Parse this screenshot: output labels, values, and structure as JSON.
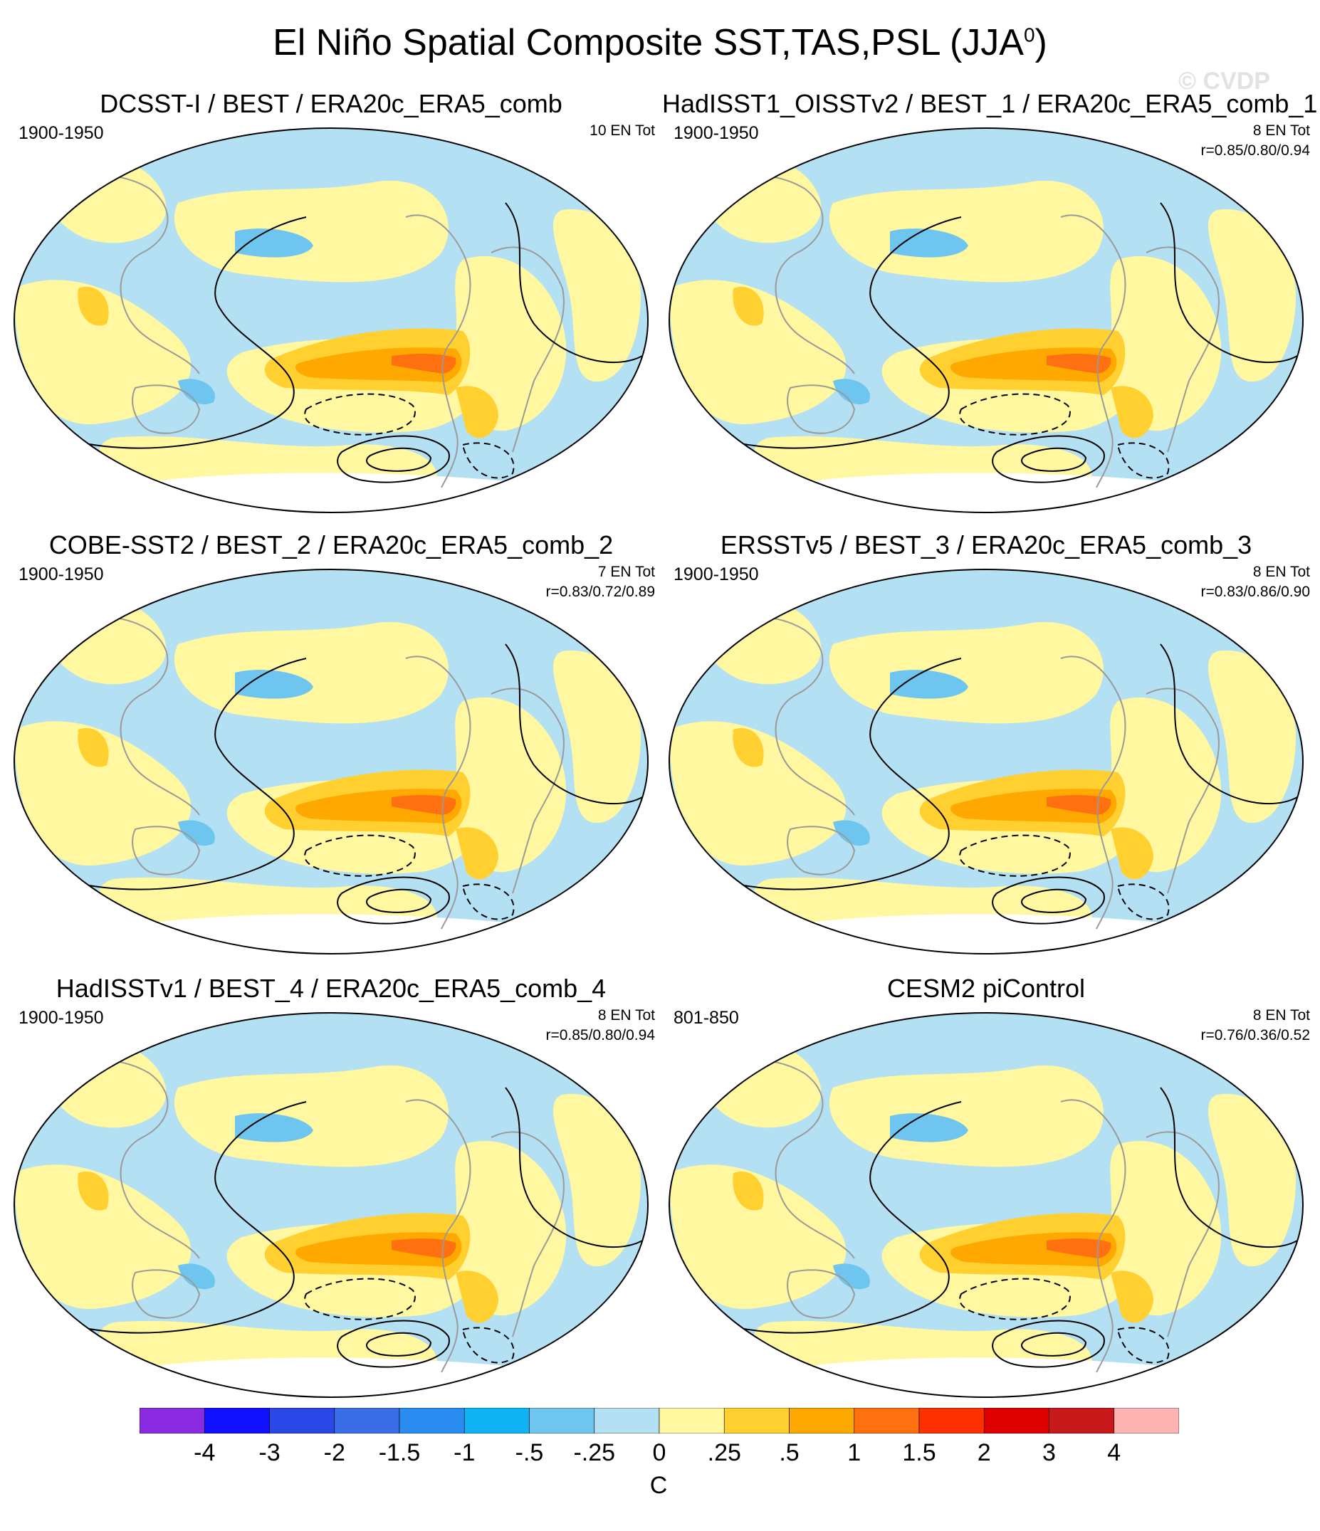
{
  "figure": {
    "title": "El Niño Spatial Composite SST,TAS,PSL (JJA",
    "title_superscript": "0",
    "title_close": ")",
    "watermark": "© CVDP"
  },
  "panels": [
    {
      "title": "DCSST-I / BEST / ERA20c_ERA5_comb",
      "period": "1900-1950",
      "count": "10 EN Tot",
      "corr": ""
    },
    {
      "title": "HadISST1_OISSTv2 / BEST_1 / ERA20c_ERA5_comb_1",
      "period": "1900-1950",
      "count": "8 EN Tot",
      "corr": "r=0.85/0.80/0.94"
    },
    {
      "title": "COBE-SST2 / BEST_2 / ERA20c_ERA5_comb_2",
      "period": "1900-1950",
      "count": "7 EN Tot",
      "corr": "r=0.83/0.72/0.89"
    },
    {
      "title": "ERSSTv5 / BEST_3 / ERA20c_ERA5_comb_3",
      "period": "1900-1950",
      "count": "8 EN Tot",
      "corr": "r=0.83/0.86/0.90"
    },
    {
      "title": "HadISSTv1 / BEST_4 / ERA20c_ERA5_comb_4",
      "period": "1900-1950",
      "count": "8 EN Tot",
      "corr": "r=0.85/0.80/0.94"
    },
    {
      "title": "CESM2 piControl",
      "period": "801-850",
      "count": "8 EN Tot",
      "corr": "r=0.76/0.36/0.52"
    }
  ],
  "colorbar": {
    "units": "C",
    "labels": [
      "-4",
      "-3",
      "-2",
      "-1.5",
      "-1",
      "-.5",
      "-.25",
      "0",
      ".25",
      ".5",
      "1",
      "1.5",
      "2",
      "3",
      "4"
    ],
    "colors": [
      "#8a2be2",
      "#1010ff",
      "#2a48e8",
      "#3a6ee6",
      "#2a8cf0",
      "#10b4f4",
      "#6ec6f0",
      "#b4e0f4",
      "#fff8a0",
      "#ffd030",
      "#ffa800",
      "#ff7010",
      "#ff3000",
      "#e00000",
      "#c81a1a",
      "#ffb4b4"
    ]
  },
  "colors": {
    "warm_weak": "#fff8a0",
    "warm_mid": "#ffd030",
    "warm_strong": "#ffa800",
    "warm_max": "#ff7010",
    "cool_weak": "#b4e0f4",
    "cool_mid": "#6ec6f0",
    "cool_strong": "#10b4f4"
  }
}
